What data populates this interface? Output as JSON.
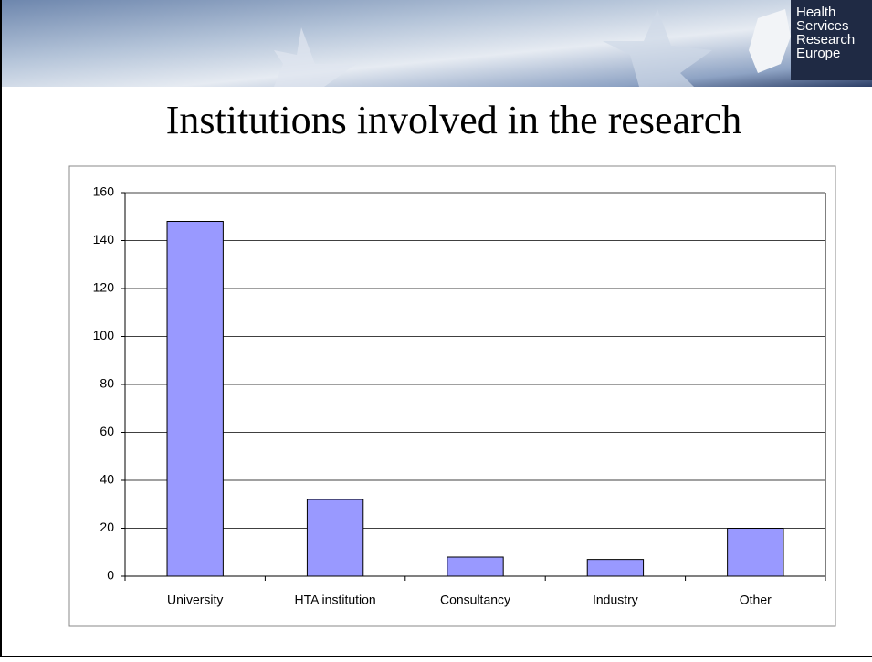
{
  "logo": [
    "Health",
    "Services",
    "Research",
    "Europe"
  ],
  "chart_data": {
    "type": "bar",
    "title": "Institutions involved in the research",
    "categories": [
      "University",
      "HTA institution",
      "Consultancy",
      "Industry",
      "Other"
    ],
    "values": [
      148,
      32,
      8,
      7,
      20
    ],
    "color": "#9999ff",
    "ylim": [
      0,
      160
    ],
    "yticks": [
      0,
      20,
      40,
      60,
      80,
      100,
      120,
      140,
      160
    ],
    "grid": true
  }
}
